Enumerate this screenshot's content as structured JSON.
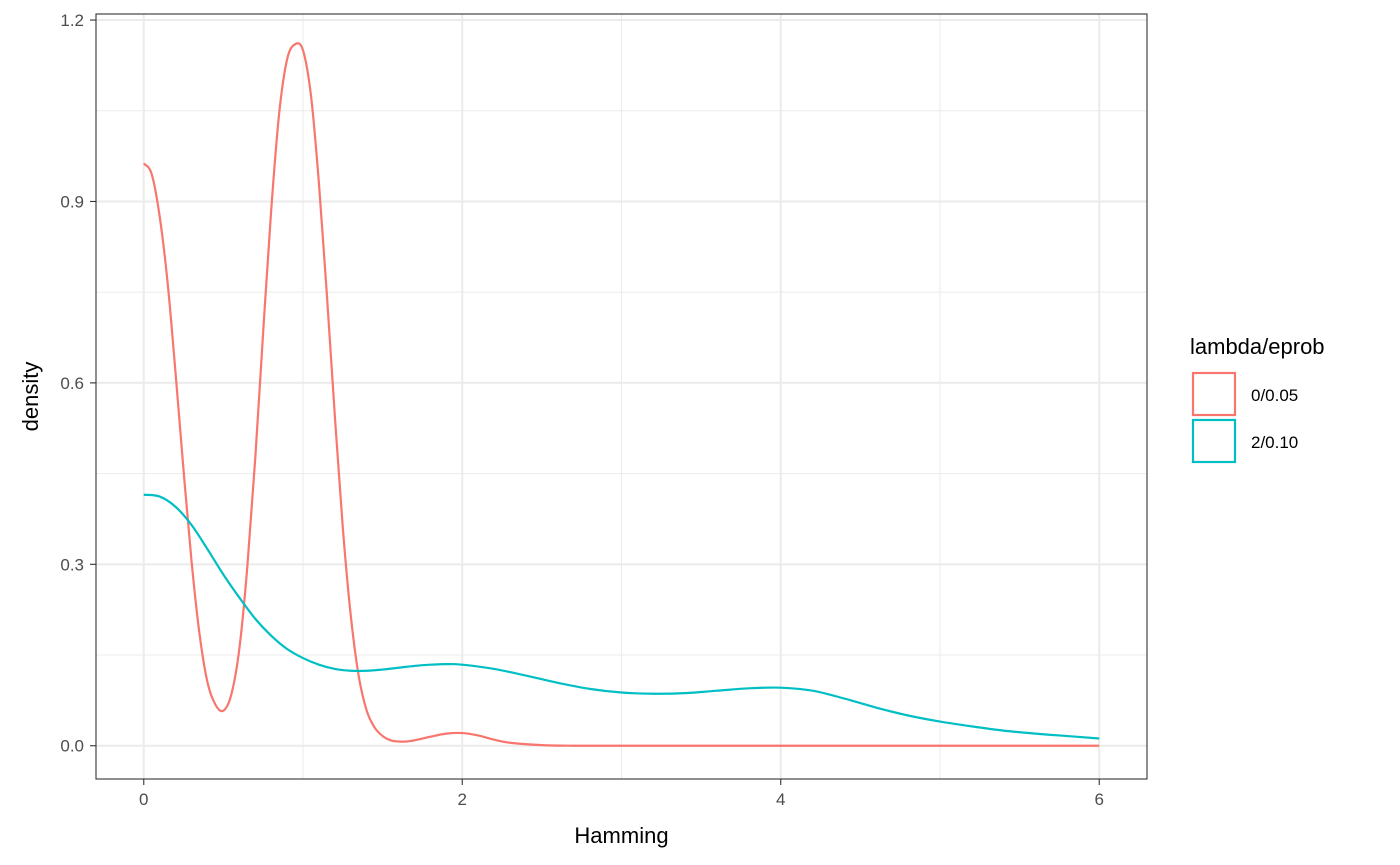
{
  "chart_data": {
    "type": "line",
    "title": "",
    "xlabel": "Hamming",
    "ylabel": "density",
    "xlim": [
      -0.3,
      6.3
    ],
    "ylim": [
      -0.055,
      1.21
    ],
    "xticks": [
      0,
      2,
      4,
      6
    ],
    "yticks": [
      0.0,
      0.3,
      0.6,
      0.9,
      1.2
    ],
    "xtick_labels": [
      "0",
      "2",
      "4",
      "6"
    ],
    "ytick_labels": [
      "0.0",
      "0.3",
      "0.6",
      "0.9",
      "1.2"
    ],
    "grid": true,
    "legend": {
      "title": "lambda/eprob",
      "placement": "right"
    },
    "series": [
      {
        "name": "0/0.05",
        "color": "#F8766D",
        "x": [
          0,
          0.05,
          0.1,
          0.15,
          0.2,
          0.25,
          0.3,
          0.35,
          0.4,
          0.45,
          0.5,
          0.55,
          0.6,
          0.65,
          0.7,
          0.75,
          0.8,
          0.85,
          0.9,
          0.95,
          1.0,
          1.05,
          1.1,
          1.15,
          1.2,
          1.25,
          1.3,
          1.35,
          1.4,
          1.45,
          1.5,
          1.55,
          1.6,
          1.65,
          1.7,
          1.8,
          1.9,
          2.0,
          2.1,
          2.2,
          2.3,
          2.5,
          2.7,
          3.0,
          3.5,
          4.0,
          4.5,
          5.0,
          5.5,
          6.0
        ],
        "y": [
          0.963,
          0.945,
          0.875,
          0.765,
          0.615,
          0.455,
          0.305,
          0.185,
          0.105,
          0.068,
          0.058,
          0.085,
          0.16,
          0.295,
          0.475,
          0.685,
          0.885,
          1.045,
          1.135,
          1.16,
          1.15,
          1.075,
          0.93,
          0.745,
          0.545,
          0.36,
          0.215,
          0.115,
          0.058,
          0.03,
          0.016,
          0.009,
          0.007,
          0.007,
          0.009,
          0.015,
          0.02,
          0.021,
          0.017,
          0.01,
          0.005,
          0.001,
          0.0,
          0.0,
          0.0,
          0.0,
          0.0,
          0.0,
          0.0,
          0.0
        ]
      },
      {
        "name": "2/0.10",
        "color": "#00BFC4",
        "x": [
          0,
          0.1,
          0.2,
          0.3,
          0.4,
          0.5,
          0.6,
          0.7,
          0.8,
          0.9,
          1.0,
          1.1,
          1.2,
          1.3,
          1.4,
          1.5,
          1.6,
          1.7,
          1.8,
          1.9,
          2.0,
          2.2,
          2.4,
          2.6,
          2.8,
          3.0,
          3.2,
          3.4,
          3.6,
          3.8,
          4.0,
          4.2,
          4.4,
          4.6,
          4.8,
          5.0,
          5.2,
          5.4,
          5.6,
          5.8,
          6.0
        ],
        "y": [
          0.415,
          0.412,
          0.395,
          0.365,
          0.325,
          0.283,
          0.245,
          0.21,
          0.182,
          0.16,
          0.145,
          0.134,
          0.127,
          0.124,
          0.124,
          0.126,
          0.129,
          0.132,
          0.134,
          0.135,
          0.134,
          0.127,
          0.116,
          0.104,
          0.094,
          0.088,
          0.086,
          0.087,
          0.091,
          0.095,
          0.096,
          0.091,
          0.078,
          0.063,
          0.05,
          0.04,
          0.032,
          0.025,
          0.02,
          0.016,
          0.012
        ]
      }
    ]
  }
}
